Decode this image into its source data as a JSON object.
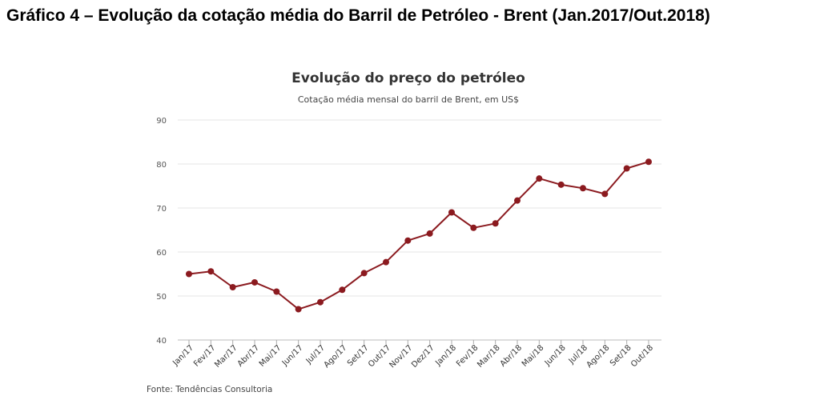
{
  "page": {
    "title": "Gráfico 4 – Evolução da cotação média do Barril de Petróleo - Brent (Jan.2017/Out.2018)"
  },
  "chart_data": {
    "type": "line",
    "title": "Evolução do preço do petróleo",
    "subtitle": "Cotação média mensal do barril de Brent, em US$",
    "xlabel": "",
    "ylabel": "",
    "categories": [
      "Jan/17",
      "Fev/17",
      "Mar/17",
      "Abr/17",
      "Mai/17",
      "Jun/17",
      "Jul/17",
      "Ago/17",
      "Set/17",
      "Out/17",
      "Nov/17",
      "Dez/17",
      "Jan/18",
      "Fev/18",
      "Mar/18",
      "Abr/18",
      "Mai/18",
      "Jun/18",
      "Jul/18",
      "Ago/18",
      "Set/18",
      "Out/18"
    ],
    "values": [
      55.0,
      55.6,
      52.0,
      53.1,
      51.0,
      47.0,
      48.6,
      51.4,
      55.2,
      57.7,
      62.6,
      64.2,
      69.0,
      65.5,
      66.5,
      71.7,
      76.7,
      75.3,
      74.5,
      73.2,
      79.0,
      80.5
    ],
    "ylim": [
      40,
      90
    ],
    "yticks": [
      "90",
      "80",
      "70",
      "60",
      "50",
      "40"
    ],
    "grid": true,
    "line_color": "#8b1a1f",
    "marker_color": "#8b1a1f",
    "source": "Fonte: Tendências Consultoria"
  }
}
